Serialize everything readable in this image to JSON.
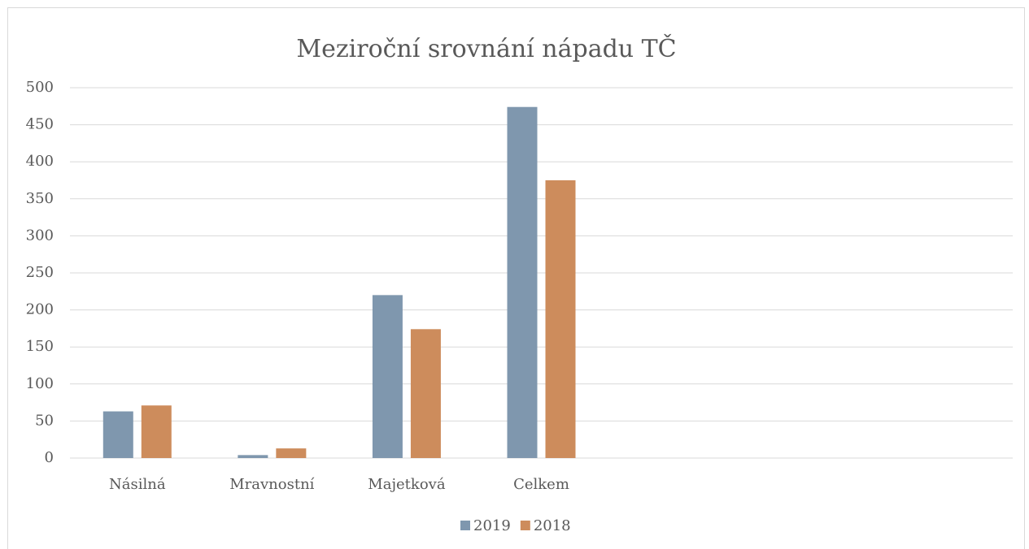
{
  "chart_data": {
    "type": "bar",
    "title": "Meziroční srovnání nápadu TČ",
    "categories": [
      "Násilná",
      "Mravnostní",
      "Majetková",
      "Celkem",
      null,
      null,
      null
    ],
    "series": [
      {
        "name": "2019",
        "color": "#7f97ae",
        "values": [
          63,
          4,
          220,
          474,
          null,
          null,
          null
        ]
      },
      {
        "name": "2018",
        "color": "#cd8c5c",
        "values": [
          71,
          13,
          174,
          375,
          null,
          null,
          null
        ]
      }
    ],
    "ylim": [
      0,
      500
    ],
    "yticks": [
      0,
      50,
      100,
      150,
      200,
      250,
      300,
      350,
      400,
      450,
      500
    ],
    "grid": true,
    "legend": "bottom"
  }
}
